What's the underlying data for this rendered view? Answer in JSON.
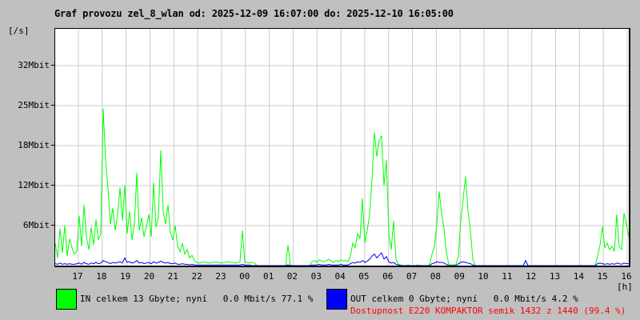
{
  "colors": {
    "background": "#c0c0c0",
    "plot_background": "#ffffff",
    "grid": "#cccccc",
    "axis": "#000000",
    "in_green": "#00ff00",
    "out_blue": "#0000ff",
    "availability_red": "#ff0000"
  },
  "availability": {
    "text": "Dostupnost E220 KOMPAKTOR semik 1432 z 1440 (99.4 %)",
    "color": "#ff0000"
  },
  "chart_data": {
    "type": "line",
    "title": "Graf provozu zel_8_wlan od: 2025-12-09 16:07:00 do: 2025-12-10 16:05:00",
    "xlabel": "[h]",
    "ylabel": "[/s]",
    "start": "2025-12-09 16:07:00",
    "end": "2025-12-10 16:05:00",
    "sample_interval_minutes": 6,
    "grid": true,
    "ylim": [
      0,
      37
    ],
    "x_ticks": [
      "17",
      "18",
      "19",
      "20",
      "21",
      "22",
      "23",
      "00",
      "01",
      "02",
      "03",
      "04",
      "05",
      "06",
      "07",
      "08",
      "09",
      "10",
      "11",
      "12",
      "13",
      "14",
      "15",
      "16"
    ],
    "y_ticks": {
      "labels": [
        "6Mbit",
        "12Mbit",
        "18Mbit",
        "25Mbit",
        "32Mbit"
      ],
      "values": [
        6.25,
        12.5,
        18.75,
        25,
        31.25
      ]
    },
    "legend": [
      {
        "color": "#00ff00",
        "label": "IN celkem 13 Gbyte; nyní   0.0 Mbit/s 77.1 %"
      },
      {
        "color": "#0000ff",
        "label": "OUT celkem 0 Gbyte; nyní   0.0 Mbit/s 4.2 %"
      }
    ],
    "series": [
      {
        "name": "IN",
        "color": "#00ff00",
        "unit": "Mbit/s",
        "values": [
          3.5,
          1.2,
          5.8,
          2.0,
          6.3,
          1.5,
          4.2,
          2.8,
          1.8,
          2.2,
          7.8,
          3.0,
          9.5,
          4.5,
          2.5,
          6.0,
          3.2,
          7.2,
          4.0,
          5.0,
          24.5,
          16.5,
          12.0,
          6.5,
          9.0,
          5.5,
          8.0,
          12.2,
          7.0,
          12.6,
          5.0,
          8.5,
          4.0,
          6.5,
          14.5,
          5.5,
          7.5,
          4.5,
          6.0,
          8.0,
          4.5,
          13.0,
          6.0,
          7.5,
          18.0,
          8.5,
          6.5,
          9.5,
          5.2,
          4.0,
          6.3,
          3.0,
          2.2,
          3.5,
          1.8,
          2.5,
          1.2,
          1.6,
          0.8,
          0.5,
          0.4,
          0.5,
          0.6,
          0.5,
          0.4,
          0.5,
          0.5,
          0.6,
          0.5,
          0.4,
          0.5,
          0.5,
          0.6,
          0.5,
          0.5,
          0.4,
          0.5,
          0.6,
          5.5,
          0.5,
          0.5,
          0.4,
          0.5,
          0.4,
          0,
          0,
          0,
          0,
          0,
          0,
          0,
          0,
          0,
          0,
          0,
          0,
          0,
          3.2,
          0,
          0,
          0,
          0,
          0,
          0,
          0,
          0,
          0,
          0.6,
          0.8,
          0.5,
          0.9,
          0.7,
          0.6,
          0.8,
          1.0,
          0.7,
          0.5,
          0.8,
          0.6,
          0.9,
          0.7,
          0.8,
          0.6,
          1.5,
          3.5,
          2.8,
          5.0,
          4.2,
          10.5,
          3.5,
          5.5,
          8.0,
          13.5,
          20.8,
          17.0,
          19.5,
          20.3,
          12.5,
          16.5,
          5.0,
          2.5,
          7.0,
          1.0,
          0.2,
          0.1,
          0,
          0,
          0.1,
          0,
          0,
          0,
          0.1,
          0,
          0,
          0,
          0,
          0.1,
          1.8,
          3.0,
          6.5,
          11.6,
          8.2,
          5.8,
          2.0,
          0.2,
          0.1,
          0.1,
          0.2,
          1.5,
          7.0,
          10.5,
          13.9,
          8.5,
          5.5,
          1.0,
          0,
          0,
          0,
          0,
          0,
          0,
          0,
          0,
          0,
          0,
          0,
          0,
          0,
          0,
          0,
          0,
          0,
          0,
          0,
          0,
          0,
          0,
          0,
          0,
          0,
          0,
          0,
          0,
          0,
          0,
          0,
          0,
          0,
          0,
          0,
          0,
          0,
          0,
          0,
          0,
          0,
          0,
          0,
          0,
          0,
          0,
          0,
          0,
          0,
          0,
          0,
          1.5,
          3.2,
          6.1,
          2.8,
          3.5,
          2.5,
          3.0,
          2.2,
          8.0,
          3.0,
          2.5,
          8.2,
          6.5,
          4.5
        ]
      },
      {
        "name": "OUT",
        "color": "#0000ff",
        "unit": "Mbit/s",
        "values": [
          0.3,
          0.2,
          0.4,
          0.2,
          0.3,
          0.2,
          0.3,
          0.2,
          0.2,
          0.3,
          0.4,
          0.2,
          0.5,
          0.3,
          0.2,
          0.4,
          0.3,
          0.5,
          0.3,
          0.4,
          0.8,
          0.6,
          0.5,
          0.3,
          0.5,
          0.4,
          0.5,
          0.6,
          0.4,
          1.2,
          0.5,
          0.6,
          0.4,
          0.5,
          0.8,
          0.4,
          0.5,
          0.3,
          0.4,
          0.5,
          0.3,
          0.6,
          0.4,
          0.5,
          0.7,
          0.5,
          0.4,
          0.5,
          0.3,
          0.3,
          0.4,
          0.2,
          0.2,
          0.3,
          0.2,
          0.2,
          0.1,
          0.2,
          0.1,
          0.1,
          0.1,
          0.1,
          0.1,
          0.1,
          0.1,
          0.1,
          0.1,
          0.1,
          0.1,
          0.1,
          0.1,
          0.1,
          0.1,
          0.1,
          0.1,
          0.1,
          0.1,
          0.1,
          0.2,
          0.1,
          0.1,
          0.1,
          0,
          0,
          0,
          0,
          0,
          0,
          0,
          0,
          0,
          0,
          0,
          0,
          0,
          0,
          0,
          0.1,
          0,
          0,
          0,
          0,
          0,
          0,
          0,
          0,
          0,
          0.1,
          0.1,
          0.1,
          0.2,
          0.1,
          0.1,
          0.1,
          0.2,
          0.1,
          0.1,
          0.1,
          0.1,
          0.2,
          0.1,
          0.1,
          0.1,
          0.3,
          0.5,
          0.4,
          0.6,
          0.5,
          0.8,
          0.5,
          0.7,
          1.0,
          1.5,
          1.8,
          1.2,
          1.6,
          2.0,
          1.0,
          1.4,
          0.6,
          0.4,
          0.5,
          0.2,
          0.1,
          0,
          0,
          0,
          0,
          0,
          0,
          0,
          0,
          0,
          0,
          0,
          0,
          0,
          0.3,
          0.4,
          0.6,
          0.5,
          0.5,
          0.4,
          0.2,
          0,
          0,
          0,
          0,
          0.3,
          0.5,
          0.6,
          0.5,
          0.4,
          0.3,
          0.1,
          0,
          0,
          0,
          0,
          0,
          0,
          0,
          0,
          0,
          0,
          0,
          0,
          0,
          0,
          0,
          0,
          0,
          0,
          0,
          0,
          0,
          0.8,
          0,
          0,
          0,
          0,
          0,
          0,
          0,
          0,
          0,
          0,
          0,
          0,
          0,
          0,
          0,
          0,
          0,
          0,
          0,
          0,
          0,
          0,
          0,
          0,
          0,
          0,
          0,
          0,
          0,
          0.3,
          0.4,
          0.3,
          0.2,
          0.3,
          0.2,
          0.3,
          0.2,
          0.4,
          0.3,
          0.2,
          0.4,
          0.3,
          0.3
        ]
      }
    ]
  }
}
